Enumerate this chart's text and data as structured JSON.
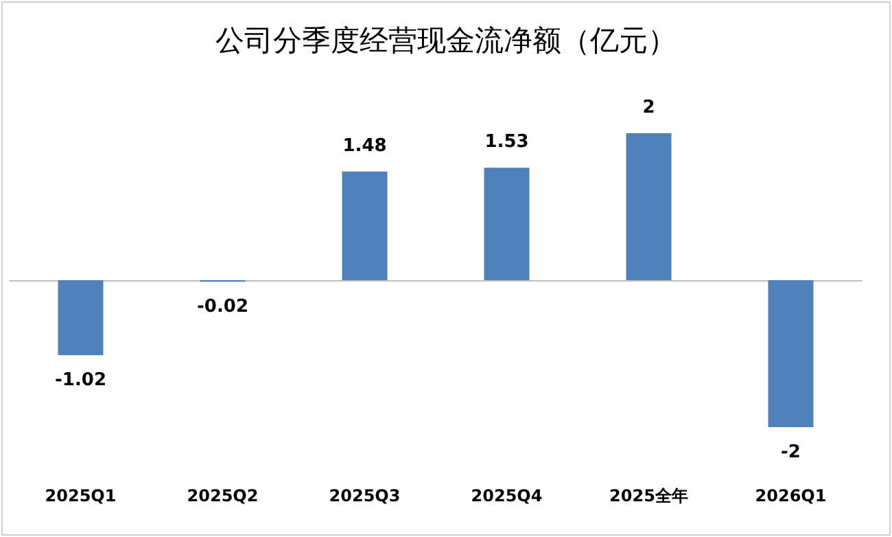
{
  "chart_data": {
    "type": "bar",
    "title": "公司分季度经营现金流净额（亿元）",
    "categories": [
      "2025Q1",
      "2025Q2",
      "2025Q3",
      "2025Q4",
      "2025全年",
      "2026Q1"
    ],
    "series": [
      {
        "color": "#4f81bd",
        "values": [
          -1.02,
          -0.02,
          1.48,
          1.53,
          2,
          -2
        ]
      }
    ],
    "data_labels": true,
    "tick_labels": "x"
  }
}
